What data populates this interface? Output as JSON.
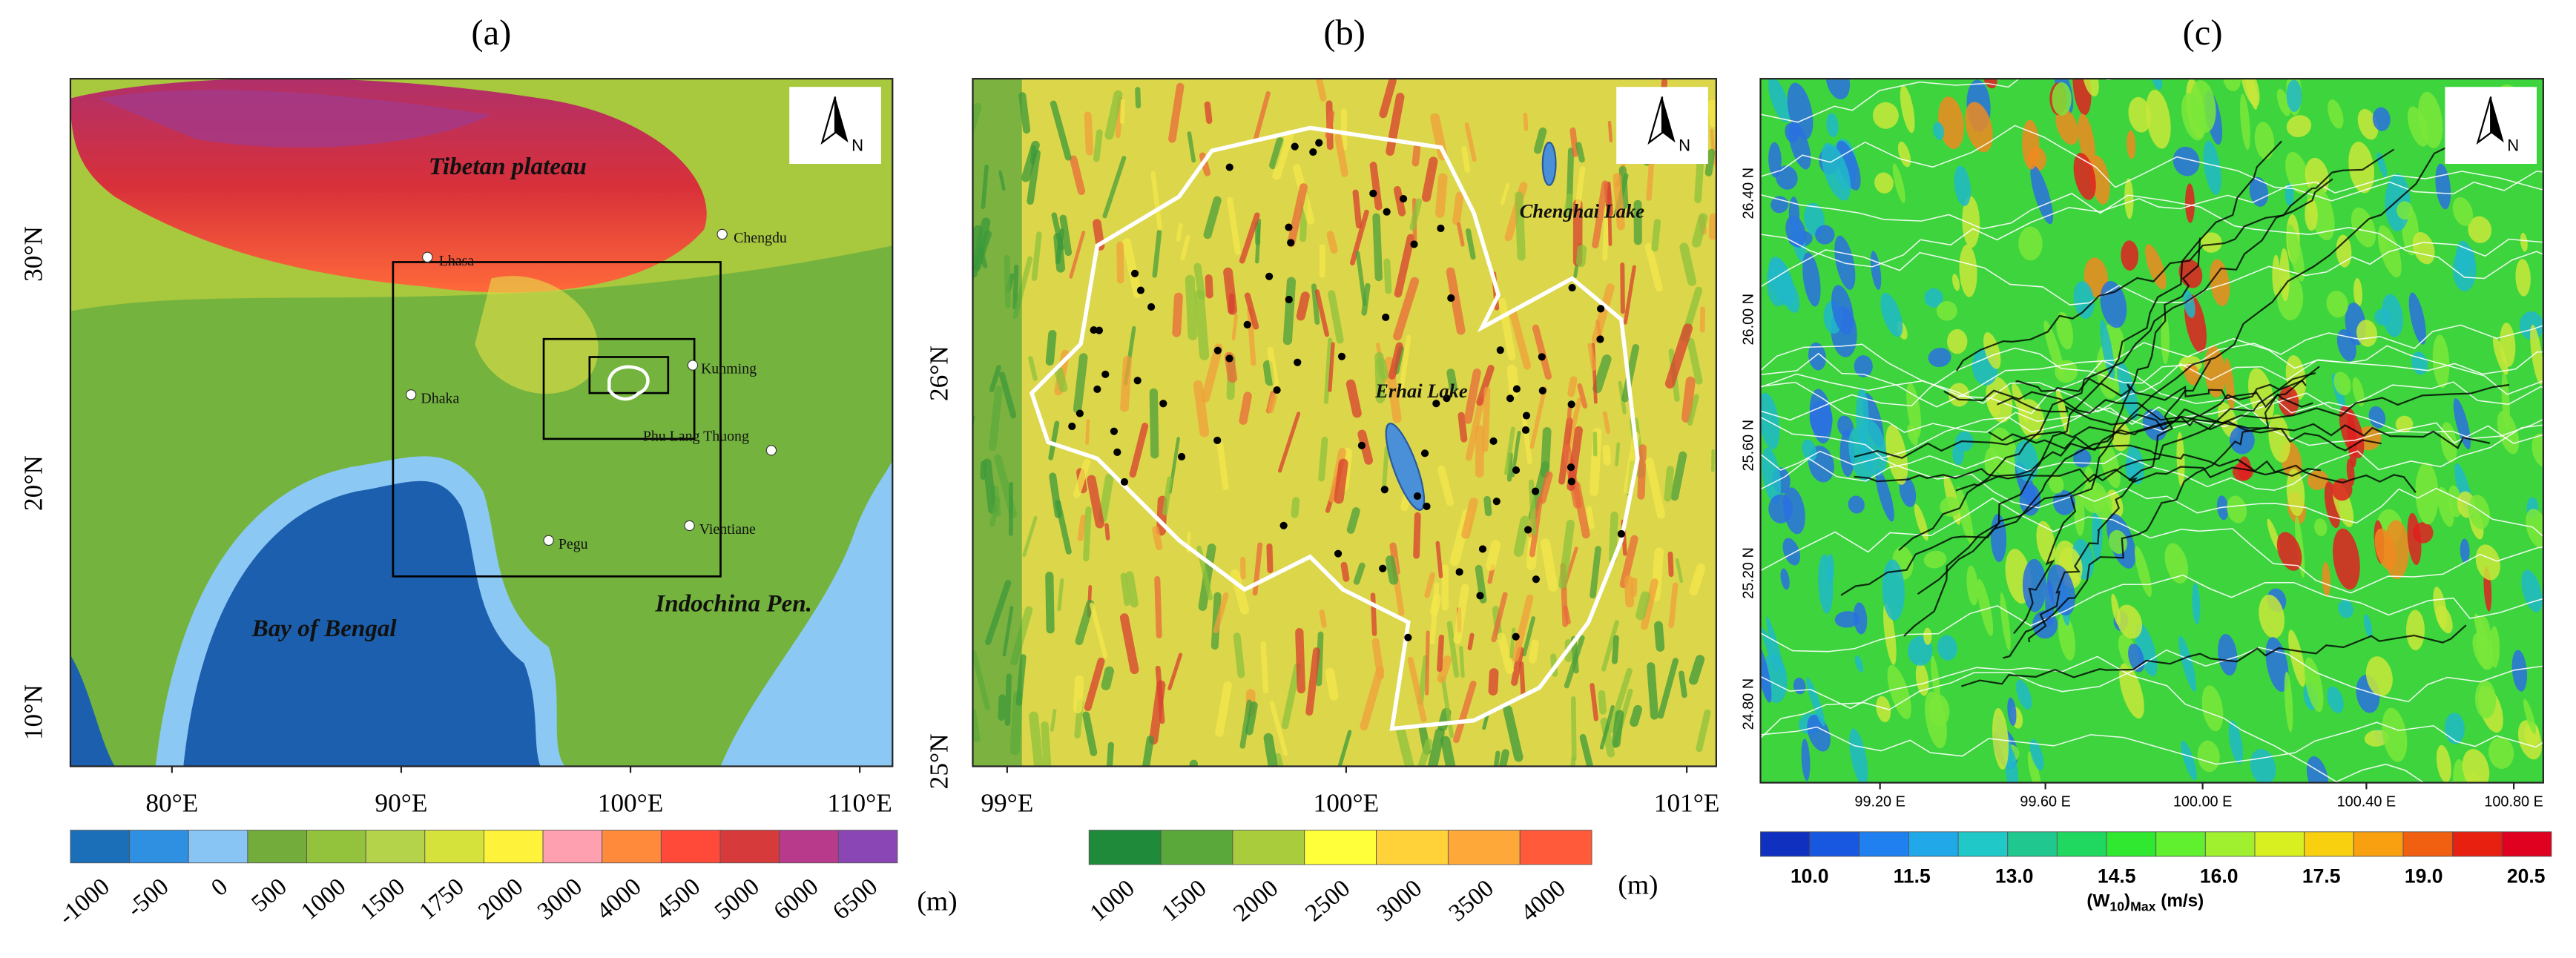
{
  "panels": [
    {
      "label": "(a)",
      "x_labels": [
        "80°E",
        "90°E",
        "100°E",
        "110°E"
      ],
      "y_labels": [
        "10°N",
        "20°N",
        "30°N"
      ],
      "places": [
        "Tibetan plateau",
        "Lhasa",
        "Chengdu",
        "Dhaka",
        "Kunming",
        "Phu Lang Thuong",
        "Pegu",
        "Vientiane",
        "Bay of Bengal",
        "Indochina Pen."
      ],
      "north": "N",
      "colorbar_labels": [
        "-1000",
        "-500",
        "0",
        "500",
        "1000",
        "1500",
        "1750",
        "2000",
        "3000",
        "4000",
        "4500",
        "5000",
        "6000",
        "6500"
      ],
      "colorbar_unit": "(m)"
    },
    {
      "label": "(b)",
      "x_labels": [
        "99°E",
        "100°E",
        "101°E"
      ],
      "y_labels": [
        "25°N",
        "26°N"
      ],
      "places": [
        "Chenghai Lake",
        "Erhai Lake"
      ],
      "north": "N",
      "colorbar_labels": [
        "1000",
        "1500",
        "2000",
        "2500",
        "3000",
        "3500",
        "4000"
      ],
      "colorbar_unit": "(m)"
    },
    {
      "label": "(c)",
      "x_labels": [
        "99.20 E",
        "99.60 E",
        "100.00 E",
        "100.40 E",
        "100.80 E"
      ],
      "y_labels": [
        "24.80 N",
        "25.20 N",
        "25.60 N",
        "26.00 N",
        "26.40 N"
      ],
      "north": "N",
      "colorbar_labels": [
        "10.0",
        "11.5",
        "13.0",
        "14.5",
        "16.0",
        "17.5",
        "19.0",
        "20.5"
      ],
      "colorbar_title": [
        "(W",
        "10",
        ")",
        "Max",
        " (m/s)"
      ]
    }
  ]
}
